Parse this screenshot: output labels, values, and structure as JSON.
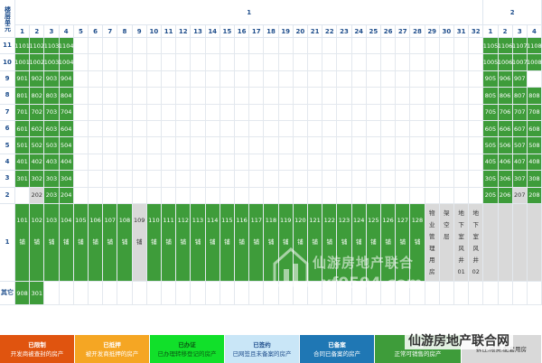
{
  "header": {
    "floor_label": "楼层",
    "unit_label": "单元",
    "buildings": [
      {
        "label": "1"
      },
      {
        "label": "2"
      }
    ],
    "unit_cols_b1": [
      "1",
      "2",
      "3",
      "4",
      "5",
      "6",
      "7",
      "8",
      "9",
      "10",
      "11",
      "12",
      "13",
      "14",
      "15",
      "16",
      "17",
      "18",
      "19",
      "20",
      "21",
      "22",
      "23",
      "24",
      "25",
      "26",
      "27",
      "28",
      "29",
      "30",
      "31",
      "32"
    ],
    "unit_cols_b2": [
      "1",
      "2",
      "3",
      "4"
    ]
  },
  "floors": [
    {
      "label": "11",
      "b1": [
        "1101",
        "1102",
        "1103",
        "1104"
      ],
      "b2": [
        "1105",
        "1106",
        "1107",
        "1108"
      ]
    },
    {
      "label": "10",
      "b1": [
        "1001",
        "1002",
        "1003",
        "1004"
      ],
      "b2": [
        "1005",
        "1006",
        "1007",
        "1008"
      ]
    },
    {
      "label": "9",
      "b1": [
        "901",
        "902",
        "903",
        "904"
      ],
      "b2": [
        "905",
        "906",
        "907",
        ""
      ]
    },
    {
      "label": "8",
      "b1": [
        "801",
        "802",
        "803",
        "804"
      ],
      "b2": [
        "805",
        "806",
        "807",
        "808"
      ]
    },
    {
      "label": "7",
      "b1": [
        "701",
        "702",
        "703",
        "704"
      ],
      "b2": [
        "705",
        "706",
        "707",
        "708"
      ]
    },
    {
      "label": "6",
      "b1": [
        "601",
        "602",
        "603",
        "604"
      ],
      "b2": [
        "605",
        "606",
        "607",
        "608"
      ]
    },
    {
      "label": "5",
      "b1": [
        "501",
        "502",
        "503",
        "504"
      ],
      "b2": [
        "505",
        "506",
        "507",
        "508"
      ]
    },
    {
      "label": "4",
      "b1": [
        "401",
        "402",
        "403",
        "404"
      ],
      "b2": [
        "405",
        "406",
        "407",
        "408"
      ]
    },
    {
      "label": "3",
      "b1": [
        "301",
        "302",
        "303",
        "304"
      ],
      "b2": [
        "305",
        "306",
        "307",
        "308"
      ]
    },
    {
      "label": "2",
      "b1": [
        "",
        "202",
        "203",
        "204"
      ],
      "b2": [
        "205",
        "206",
        "207",
        "208"
      ],
      "b1_gray": [
        1
      ],
      "b2_gray": [
        2
      ]
    }
  ],
  "floor1": {
    "label": "1",
    "shops": [
      {
        "no": "101",
        "t": "铺"
      },
      {
        "no": "102",
        "t": "铺"
      },
      {
        "no": "103",
        "t": "铺"
      },
      {
        "no": "104",
        "t": "铺"
      },
      {
        "no": "105",
        "t": "铺"
      },
      {
        "no": "106",
        "t": "铺"
      },
      {
        "no": "107",
        "t": "铺"
      },
      {
        "no": "108",
        "t": "铺"
      },
      {
        "no": "109",
        "t": "铺",
        "gray": true
      },
      {
        "no": "110",
        "t": "铺"
      },
      {
        "no": "111",
        "t": "铺"
      },
      {
        "no": "112",
        "t": "铺"
      },
      {
        "no": "113",
        "t": "铺"
      },
      {
        "no": "114",
        "t": "铺"
      },
      {
        "no": "115",
        "t": "铺"
      },
      {
        "no": "116",
        "t": "铺"
      },
      {
        "no": "117",
        "t": "铺"
      },
      {
        "no": "118",
        "t": "铺"
      },
      {
        "no": "119",
        "t": "铺"
      },
      {
        "no": "120",
        "t": "铺"
      },
      {
        "no": "121",
        "t": "铺"
      },
      {
        "no": "122",
        "t": "铺"
      },
      {
        "no": "123",
        "t": "铺"
      },
      {
        "no": "124",
        "t": "铺"
      },
      {
        "no": "125",
        "t": "铺"
      },
      {
        "no": "126",
        "t": "铺"
      },
      {
        "no": "127",
        "t": "铺"
      },
      {
        "no": "128",
        "t": "铺"
      }
    ],
    "special": [
      [
        "物",
        "业",
        "管",
        "理",
        "用",
        "房"
      ],
      [
        "架",
        "空",
        "层"
      ],
      [
        "地",
        "下",
        "室",
        "风",
        "井",
        "01"
      ],
      [
        "地",
        "下",
        "室",
        "风",
        "井",
        "02"
      ]
    ]
  },
  "other_row": {
    "label": "其它",
    "units": [
      "908",
      "301"
    ]
  },
  "legend": [
    {
      "title": "已限制",
      "desc": "开发商被查封的房产",
      "bg": "#e0540f",
      "fg": "#ffffff"
    },
    {
      "title": "已抵押",
      "desc": "被开发商抵押的房产",
      "bg": "#f5a623",
      "fg": "#ffffff"
    },
    {
      "title": "已办证",
      "desc": "已办理转移登记的房产",
      "bg": "#11e02a",
      "fg": "#0b5a14"
    },
    {
      "title": "已签约",
      "desc": "已网签且未备案的房产",
      "bg": "#c9e6f7",
      "fg": "#1f4e8c"
    },
    {
      "title": "已备案",
      "desc": "合同已备案的房产",
      "bg": "#1f77b4",
      "fg": "#ffffff"
    },
    {
      "title": "可售",
      "desc": "正常可销售的房产",
      "bg": "#3e9c3a",
      "fg": "#ffffff"
    },
    {
      "title": "",
      "desc": "拆迁,限资,配套用房",
      "bg": "#d9d9d9",
      "fg": "#333333"
    }
  ],
  "watermark": {
    "title": "仙游房地产联合",
    "url": "xf0594.com"
  },
  "brand": "仙游房地产联合网",
  "colors": {
    "sold": "#3e9c3a",
    "blocked": "#d9d9d9",
    "header_text": "#1f4e8c"
  }
}
